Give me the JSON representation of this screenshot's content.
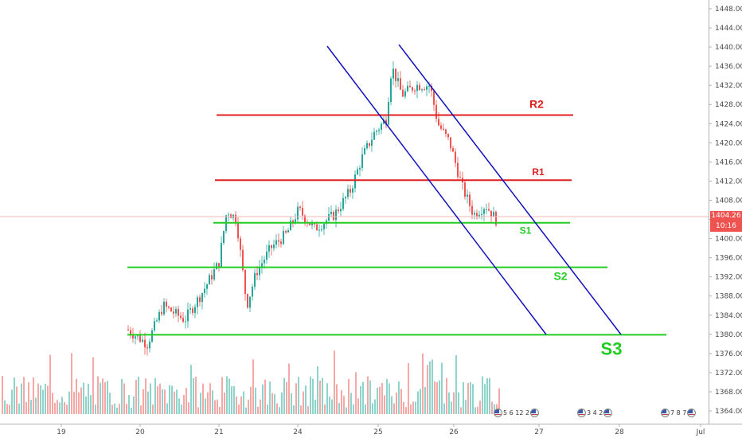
{
  "chart_data": {
    "type": "candlestick",
    "x_ticks": [
      "19",
      "20",
      "21",
      "24",
      "25",
      "26",
      "27",
      "28",
      "Jul"
    ],
    "y_ticks": [
      "1448.00",
      "1444.00",
      "1440.00",
      "1436.00",
      "1432.00",
      "1428.00",
      "1424.00",
      "1420.00",
      "1416.00",
      "1412.00",
      "1408.00",
      "1404.00",
      "1400.00",
      "1396.00",
      "1392.00",
      "1388.00",
      "1384.00",
      "1380.00",
      "1376.00",
      "1372.00",
      "1368.00",
      "1364.00"
    ],
    "ylim": [
      1362,
      1450
    ],
    "last_price": "1404.26",
    "countdown": "10:16",
    "levels": [
      {
        "label": "R2",
        "price": 1425.8,
        "color": "#e02020"
      },
      {
        "label": "R1",
        "price": 1412.2,
        "color": "#e02020"
      },
      {
        "label": "S1",
        "price": 1403.3,
        "color": "#22cc22"
      },
      {
        "label": "S2",
        "price": 1394.0,
        "color": "#22cc22"
      },
      {
        "label": "S3",
        "price": 1379.9,
        "color": "#22cc22"
      }
    ],
    "channel_color": "#1010c0",
    "up_color": "#26a69a",
    "down_color": "#ef5350",
    "grid": false
  },
  "events": [
    {
      "text": "5 6 12 2"
    },
    {
      "text": "3 4 2"
    },
    {
      "text": "7 8 7"
    }
  ]
}
